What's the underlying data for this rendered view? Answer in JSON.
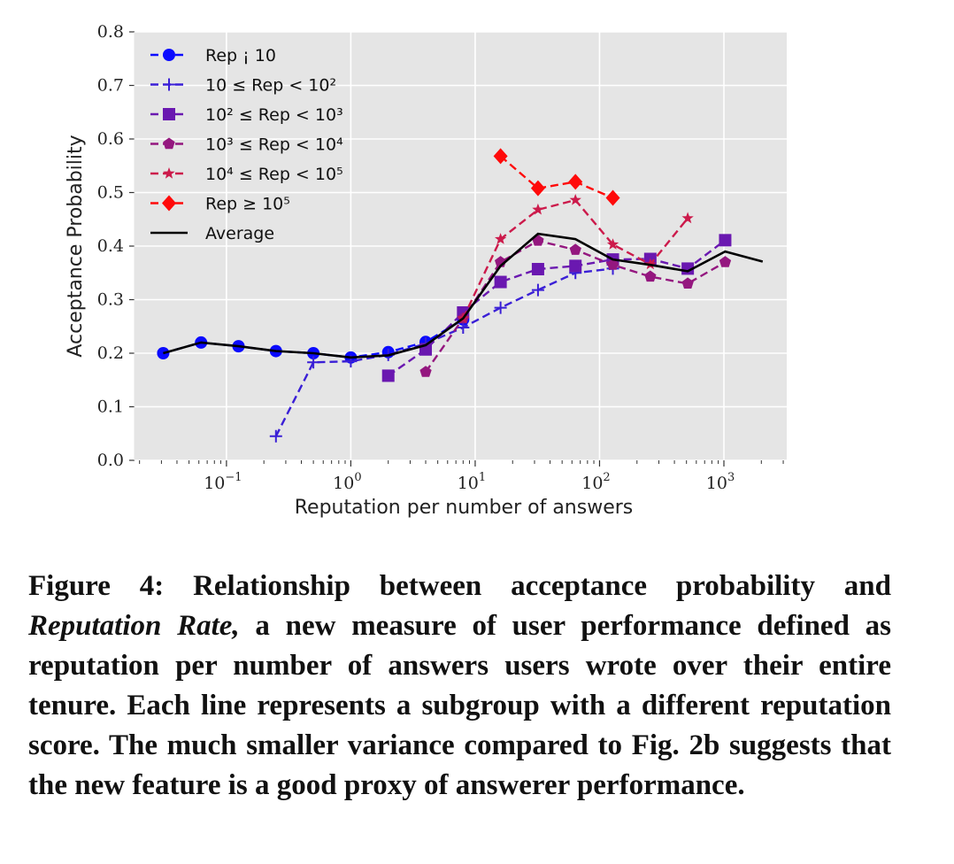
{
  "chart_data": {
    "type": "line",
    "title": "",
    "xlabel": "Reputation per number of answers",
    "ylabel": "Acceptance Probability",
    "xscale": "log",
    "xlim": [
      0.02,
      3000
    ],
    "ylim": [
      0.0,
      0.8
    ],
    "yticks": [
      "0.0",
      "0.1",
      "0.2",
      "0.3",
      "0.4",
      "0.5",
      "0.6",
      "0.7",
      "0.8"
    ],
    "xticks": [
      {
        "value": 0.1,
        "base": "10",
        "exp": "−1"
      },
      {
        "value": 1,
        "base": "10",
        "exp": "0"
      },
      {
        "value": 10,
        "base": "10",
        "exp": "1"
      },
      {
        "value": 100,
        "base": "10",
        "exp": "2"
      },
      {
        "value": 1000,
        "base": "10",
        "exp": "3"
      }
    ],
    "grid": true,
    "legend_position": "top-left",
    "series": [
      {
        "name": "Rep ¡ 10",
        "color": "#0a0aff",
        "marker": "circle",
        "dashed": true,
        "points": [
          [
            0.031,
            0.2
          ],
          [
            0.0625,
            0.22
          ],
          [
            0.125,
            0.213
          ],
          [
            0.25,
            0.204
          ],
          [
            0.5,
            0.2
          ],
          [
            1,
            0.192
          ],
          [
            2,
            0.202
          ],
          [
            4,
            0.221
          ],
          [
            8,
            0.263
          ]
        ]
      },
      {
        "name": "10 ≤ Rep < 10²",
        "color": "#3a1fd6",
        "marker": "plus",
        "dashed": true,
        "points": [
          [
            0.25,
            0.045
          ],
          [
            0.5,
            0.183
          ],
          [
            1,
            0.185
          ],
          [
            2,
            0.197
          ],
          [
            4,
            0.218
          ],
          [
            8,
            0.248
          ],
          [
            16,
            0.285
          ],
          [
            32,
            0.318
          ],
          [
            64,
            0.35
          ],
          [
            128,
            0.358
          ]
        ]
      },
      {
        "name": "10² ≤ Rep < 10³",
        "color": "#6a18b0",
        "marker": "square",
        "dashed": true,
        "points": [
          [
            2,
            0.158
          ],
          [
            4,
            0.207
          ],
          [
            8,
            0.276
          ],
          [
            16,
            0.333
          ],
          [
            32,
            0.357
          ],
          [
            64,
            0.363
          ],
          [
            128,
            0.375
          ],
          [
            256,
            0.376
          ],
          [
            512,
            0.358
          ],
          [
            1024,
            0.411
          ]
        ]
      },
      {
        "name": "10³ ≤ Rep < 10⁴",
        "color": "#94177f",
        "marker": "pentagon",
        "dashed": true,
        "points": [
          [
            4,
            0.165
          ],
          [
            8,
            0.265
          ],
          [
            16,
            0.37
          ],
          [
            32,
            0.41
          ],
          [
            64,
            0.393
          ],
          [
            128,
            0.365
          ],
          [
            256,
            0.343
          ],
          [
            512,
            0.33
          ],
          [
            1024,
            0.37
          ]
        ]
      },
      {
        "name": "10⁴ ≤ Rep < 10⁵",
        "color": "#cc1a4b",
        "marker": "star",
        "dashed": true,
        "points": [
          [
            8,
            0.265
          ],
          [
            16,
            0.413
          ],
          [
            32,
            0.468
          ],
          [
            64,
            0.486
          ],
          [
            128,
            0.403
          ],
          [
            256,
            0.366
          ],
          [
            512,
            0.452
          ]
        ]
      },
      {
        "name": "Rep ≥ 10⁵",
        "color": "#ff0a0a",
        "marker": "diamond",
        "dashed": true,
        "points": [
          [
            16,
            0.568
          ],
          [
            32,
            0.508
          ],
          [
            64,
            0.52
          ],
          [
            128,
            0.49
          ]
        ]
      },
      {
        "name": "Average",
        "color": "#000000",
        "marker": "none",
        "dashed": false,
        "points": [
          [
            0.031,
            0.2
          ],
          [
            0.0625,
            0.22
          ],
          [
            0.125,
            0.213
          ],
          [
            0.25,
            0.204
          ],
          [
            0.5,
            0.2
          ],
          [
            1,
            0.192
          ],
          [
            2,
            0.196
          ],
          [
            4,
            0.215
          ],
          [
            8,
            0.265
          ],
          [
            16,
            0.363
          ],
          [
            32,
            0.423
          ],
          [
            64,
            0.413
          ],
          [
            128,
            0.375
          ],
          [
            256,
            0.365
          ],
          [
            512,
            0.353
          ],
          [
            1024,
            0.39
          ],
          [
            2048,
            0.371
          ]
        ]
      }
    ]
  },
  "caption": {
    "label": "Figure 4:",
    "text_a": "Relationship between acceptance probability and",
    "italic": "Reputation Rate,",
    "text_b": "a new measure of user performance defined as reputation per number of answers users wrote over their entire tenure. Each line represents a subgroup with a different reputation score. The much smaller variance compared to Fig. 2b suggests that the new feature is a good proxy of answerer performance."
  }
}
